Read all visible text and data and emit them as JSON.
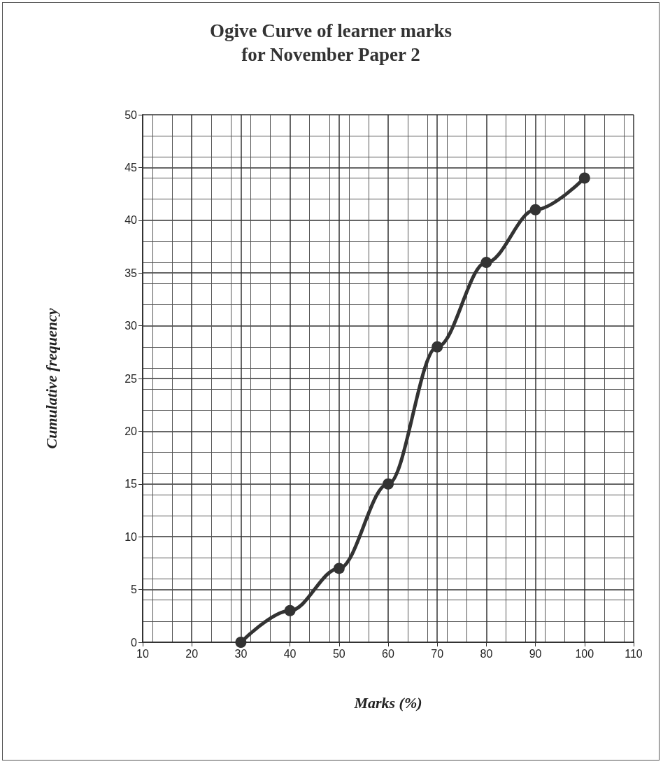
{
  "chart_data": {
    "type": "line",
    "title": "Ogive Curve of learner marks\nfor November Paper 2",
    "xlabel": "Marks (%)",
    "ylabel": "Cumulative frequency",
    "x": [
      30,
      40,
      50,
      60,
      70,
      80,
      90,
      100
    ],
    "values": [
      0,
      3,
      7,
      15,
      28,
      36,
      41,
      44
    ],
    "color": "#333333",
    "marker": "circle",
    "line_style": "solid",
    "grid": true,
    "xlim": [
      10,
      110
    ],
    "xticks": [
      10,
      20,
      30,
      40,
      50,
      60,
      70,
      80,
      90,
      100,
      110
    ],
    "ylim": [
      0,
      50
    ],
    "yticks": [
      0,
      5,
      10,
      15,
      20,
      25,
      30,
      35,
      40,
      45,
      50
    ]
  }
}
